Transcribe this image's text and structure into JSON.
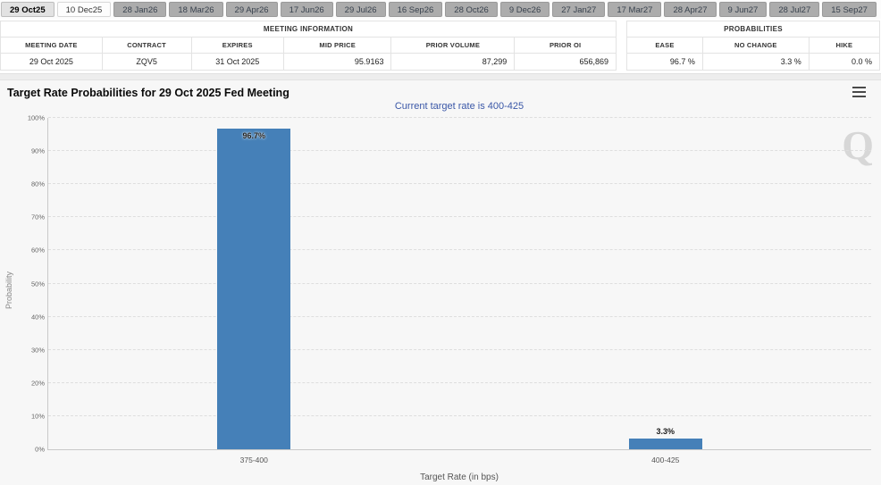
{
  "tabs": [
    {
      "label": "29 Oct25",
      "state": "bold"
    },
    {
      "label": "10 Dec25",
      "state": "white"
    },
    {
      "label": "28 Jan26",
      "state": "gray"
    },
    {
      "label": "18 Mar26",
      "state": "gray"
    },
    {
      "label": "29 Apr26",
      "state": "gray"
    },
    {
      "label": "17 Jun26",
      "state": "gray"
    },
    {
      "label": "29 Jul26",
      "state": "gray"
    },
    {
      "label": "16 Sep26",
      "state": "gray"
    },
    {
      "label": "28 Oct26",
      "state": "gray"
    },
    {
      "label": "9 Dec26",
      "state": "gray"
    },
    {
      "label": "27 Jan27",
      "state": "gray"
    },
    {
      "label": "17 Mar27",
      "state": "gray"
    },
    {
      "label": "28 Apr27",
      "state": "gray"
    },
    {
      "label": "9 Jun27",
      "state": "gray"
    },
    {
      "label": "28 Jul27",
      "state": "gray"
    },
    {
      "label": "15 Sep27",
      "state": "gray"
    }
  ],
  "meeting_info": {
    "title": "MEETING INFORMATION",
    "columns": [
      "MEETING DATE",
      "CONTRACT",
      "EXPIRES",
      "MID PRICE",
      "PRIOR VOLUME",
      "PRIOR OI"
    ],
    "values": [
      "29 Oct 2025",
      "ZQV5",
      "31 Oct 2025",
      "95.9163",
      "87,299",
      "656,869"
    ],
    "align": [
      "center",
      "center",
      "center",
      "right",
      "right",
      "right"
    ]
  },
  "probabilities": {
    "title": "PROBABILITIES",
    "columns": [
      "EASE",
      "NO CHANGE",
      "HIKE"
    ],
    "values": [
      "96.7 %",
      "3.3 %",
      "0.0 %"
    ],
    "align": [
      "right",
      "right",
      "right"
    ]
  },
  "chart": {
    "watermark": "Q"
  },
  "chart_data": {
    "type": "bar",
    "title": "Target Rate Probabilities for 29 Oct 2025 Fed Meeting",
    "subtitle": "Current target rate is 400-425",
    "categories": [
      "375-400",
      "400-425"
    ],
    "values": [
      96.7,
      3.3
    ],
    "value_labels": [
      "96.7%",
      "3.3%"
    ],
    "xlabel": "Target Rate (in bps)",
    "ylabel": "Probability",
    "ylim": [
      0,
      100
    ],
    "ytick_step": 10,
    "ytick_suffix": "%",
    "grid": "horizontal-dashed",
    "legend": "none",
    "bar_color": "#4580b8"
  }
}
